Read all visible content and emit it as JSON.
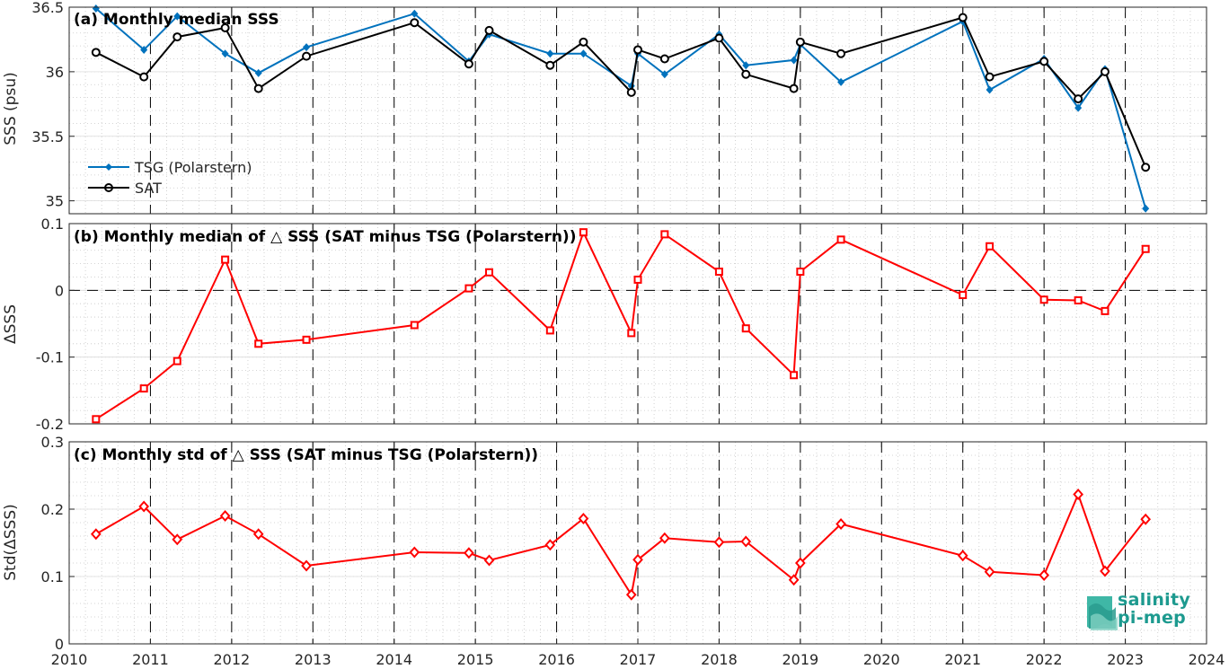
{
  "figure": {
    "x_ticks": [
      "2010",
      "2011",
      "2012",
      "2013",
      "2014",
      "2015",
      "2016",
      "2017",
      "2018",
      "2019",
      "2020",
      "2021",
      "2022",
      "2023",
      "2024"
    ],
    "x_range": [
      2010,
      2024
    ],
    "year_dashes": [
      2011,
      2012,
      2013,
      2014,
      2015,
      2016,
      2017,
      2018,
      2019,
      2020,
      2021,
      2022,
      2023
    ]
  },
  "logo": {
    "line1": "salinity",
    "line2": "pi-mep"
  },
  "chart_data": [
    {
      "type": "line",
      "title": "(a) Monthly median SSS",
      "ylabel": "SSS (psu)",
      "ylim": [
        34.9,
        36.5
      ],
      "yticks": [
        35,
        35.5,
        36,
        36.5
      ],
      "ytick_labels": [
        "35",
        "35.5",
        "36",
        "36.5"
      ],
      "grid": true,
      "legend": "left",
      "series": [
        {
          "name": "TSG (Polarstern)",
          "color": "#0072bd",
          "marker": "diamond",
          "x": [
            2010.33,
            2010.92,
            2011.33,
            2011.92,
            2012.33,
            2012.92,
            2014.25,
            2014.92,
            2015.17,
            2015.92,
            2016.33,
            2016.92,
            2017.0,
            2017.33,
            2018.0,
            2018.33,
            2018.92,
            2019.0,
            2019.5,
            2021.0,
            2021.33,
            2022.0,
            2022.42,
            2022.75,
            2023.25
          ],
          "y": [
            36.49,
            36.17,
            36.43,
            36.14,
            35.99,
            36.19,
            36.45,
            36.08,
            36.29,
            36.14,
            36.14,
            35.89,
            36.14,
            35.98,
            36.29,
            36.05,
            36.09,
            36.21,
            35.92,
            36.39,
            35.86,
            36.1,
            35.72,
            36.02,
            34.94
          ]
        },
        {
          "name": "SAT",
          "color": "#000000",
          "marker": "circle",
          "x": [
            2010.33,
            2010.92,
            2011.33,
            2011.92,
            2012.33,
            2012.92,
            2014.25,
            2014.92,
            2015.17,
            2015.92,
            2016.33,
            2016.92,
            2017.0,
            2017.33,
            2018.0,
            2018.33,
            2018.92,
            2019.0,
            2019.5,
            2021.0,
            2021.33,
            2022.0,
            2022.42,
            2022.75,
            2023.25
          ],
          "y": [
            36.15,
            35.96,
            36.27,
            36.34,
            35.87,
            36.12,
            36.38,
            36.06,
            36.32,
            36.05,
            36.23,
            35.84,
            36.17,
            36.1,
            36.26,
            35.98,
            35.87,
            36.23,
            36.14,
            36.42,
            35.96,
            36.08,
            35.79,
            36.0,
            35.26
          ]
        }
      ]
    },
    {
      "type": "line",
      "title": "(b) Monthly median of △ SSS (SAT minus TSG (Polarstern))",
      "ylabel": "ΔSSS",
      "ylim": [
        -0.2,
        0.1
      ],
      "yticks": [
        -0.2,
        -0.1,
        0,
        0.1
      ],
      "ytick_labels": [
        "-0.2",
        "-0.1",
        "0",
        "0.1"
      ],
      "grid": true,
      "series": [
        {
          "name": "",
          "color": "#ff0000",
          "marker": "square",
          "x": [
            2010.33,
            2010.92,
            2011.33,
            2011.92,
            2012.33,
            2012.92,
            2014.25,
            2014.92,
            2015.17,
            2015.92,
            2016.33,
            2016.92,
            2017.0,
            2017.33,
            2018.0,
            2018.33,
            2018.92,
            2019.0,
            2019.5,
            2021.0,
            2021.33,
            2022.0,
            2022.42,
            2022.75,
            2023.25
          ],
          "y": [
            -0.193,
            -0.147,
            -0.106,
            0.046,
            -0.08,
            -0.074,
            -0.052,
            0.003,
            0.027,
            -0.06,
            0.087,
            -0.064,
            0.016,
            0.084,
            0.028,
            -0.057,
            -0.127,
            0.028,
            0.076,
            -0.007,
            0.066,
            -0.014,
            -0.015,
            -0.031,
            0.062
          ]
        }
      ]
    },
    {
      "type": "line",
      "title": "(c) Monthly std of △ SSS (SAT minus TSG (Polarstern))",
      "ylabel": "Std(ΔSSS)",
      "ylim": [
        0,
        0.3
      ],
      "yticks": [
        0,
        0.1,
        0.2,
        0.3
      ],
      "ytick_labels": [
        "0",
        "0.1",
        "0.2",
        "0.3"
      ],
      "grid": true,
      "series": [
        {
          "name": "",
          "color": "#ff0000",
          "marker": "diamond-open",
          "x": [
            2010.33,
            2010.92,
            2011.33,
            2011.92,
            2012.33,
            2012.92,
            2014.25,
            2014.92,
            2015.17,
            2015.92,
            2016.33,
            2016.92,
            2017.0,
            2017.33,
            2018.0,
            2018.33,
            2018.92,
            2019.0,
            2019.5,
            2021.0,
            2021.33,
            2022.0,
            2022.42,
            2022.75,
            2023.25
          ],
          "y": [
            0.163,
            0.204,
            0.155,
            0.19,
            0.163,
            0.116,
            0.136,
            0.135,
            0.124,
            0.147,
            0.186,
            0.073,
            0.125,
            0.157,
            0.151,
            0.152,
            0.095,
            0.12,
            0.178,
            0.131,
            0.107,
            0.102,
            0.222,
            0.108,
            0.185
          ]
        }
      ]
    }
  ]
}
